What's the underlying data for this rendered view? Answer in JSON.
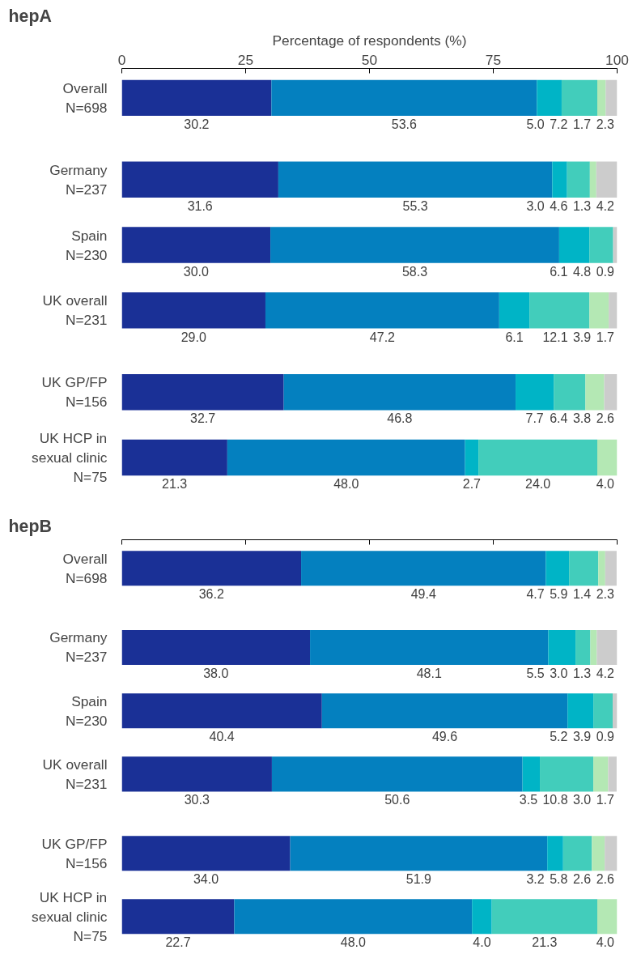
{
  "chart_data": [
    {
      "type": "bar",
      "orientation": "horizontal",
      "stacked": true,
      "title": "hepA",
      "xlabel": "Percentage of respondents (%)",
      "xlim": [
        0,
        100
      ],
      "xticks": [
        0,
        25,
        50,
        75,
        100
      ],
      "categories": [
        "Overall\nN=698",
        "Germany\nN=237",
        "Spain\nN=230",
        "UK overall\nN=231",
        "UK GP/FP\nN=156",
        "UK HCP in\nsexual clinic\nN=75"
      ],
      "series": [
        {
          "color": "#1a3096",
          "values": [
            30.2,
            31.6,
            30.0,
            29.0,
            32.7,
            21.3
          ],
          "value_labels": [
            "30.2",
            "31.6",
            "30.0",
            "29.0",
            "32.7",
            "21.3"
          ]
        },
        {
          "color": "#0480bf",
          "values": [
            53.6,
            55.3,
            58.3,
            47.2,
            46.8,
            48.0
          ],
          "value_labels": [
            "53.6",
            "55.3",
            "58.3",
            "47.2",
            "46.8",
            "48.0"
          ]
        },
        {
          "color": "#00b4c6",
          "values": [
            5.0,
            3.0,
            6.1,
            6.1,
            7.7,
            2.7
          ],
          "value_labels": [
            "5.0",
            "3.0",
            "6.1",
            "6.1",
            "7.7",
            "2.7"
          ]
        },
        {
          "color": "#42cdbb",
          "values": [
            7.2,
            4.6,
            4.8,
            12.1,
            6.4,
            24.0
          ],
          "value_labels": [
            "7.2",
            "4.6",
            "4.8",
            "12.1",
            "6.4",
            "24.0"
          ]
        },
        {
          "color": "#b4e8b4",
          "values": [
            1.7,
            1.3,
            null,
            3.9,
            3.8,
            4.0
          ],
          "value_labels": [
            "1.7",
            "1.3",
            null,
            "3.9",
            "3.8",
            "4.0"
          ]
        },
        {
          "color": "#cccccc",
          "values": [
            2.3,
            4.2,
            0.9,
            1.7,
            2.6,
            null
          ],
          "value_labels": [
            "2.3",
            "4.2",
            "0.9",
            "1.7",
            "2.6",
            null
          ]
        }
      ]
    },
    {
      "type": "bar",
      "orientation": "horizontal",
      "stacked": true,
      "title": "hepB",
      "tick_labels": "y",
      "xlim": [
        0,
        100
      ],
      "xticks": [
        0,
        25,
        50,
        75,
        100
      ],
      "categories": [
        "Overall\nN=698",
        "Germany\nN=237",
        "Spain\nN=230",
        "UK overall\nN=231",
        "UK GP/FP\nN=156",
        "UK HCP in\nsexual clinic\nN=75"
      ],
      "series": [
        {
          "color": "#1a3096",
          "values": [
            36.2,
            38.0,
            40.4,
            30.3,
            34.0,
            22.7
          ],
          "value_labels": [
            "36.2",
            "38.0",
            "40.4",
            "30.3",
            "34.0",
            "22.7"
          ]
        },
        {
          "color": "#0480bf",
          "values": [
            49.4,
            48.1,
            49.6,
            50.6,
            51.9,
            48.0
          ],
          "value_labels": [
            "49.4",
            "48.1",
            "49.6",
            "50.6",
            "51.9",
            "48.0"
          ]
        },
        {
          "color": "#00b4c6",
          "values": [
            4.7,
            5.5,
            5.2,
            3.5,
            3.2,
            4.0
          ],
          "value_labels": [
            "4.7",
            "5.5",
            "5.2",
            "3.5",
            "3.2",
            "4.0"
          ]
        },
        {
          "color": "#42cdbb",
          "values": [
            5.9,
            3.0,
            3.9,
            10.8,
            5.8,
            21.3
          ],
          "value_labels": [
            "5.9",
            "3.0",
            "3.9",
            "10.8",
            "5.8",
            "21.3"
          ]
        },
        {
          "color": "#b4e8b4",
          "values": [
            1.4,
            1.3,
            null,
            3.0,
            2.6,
            4.0
          ],
          "value_labels": [
            "1.4",
            "1.3",
            null,
            "3.0",
            "2.6",
            "4.0"
          ]
        },
        {
          "color": "#cccccc",
          "values": [
            2.3,
            4.2,
            0.9,
            1.7,
            2.6,
            null
          ],
          "value_labels": [
            "2.3",
            "4.2",
            "0.9",
            "1.7",
            "2.6",
            null
          ]
        }
      ]
    }
  ]
}
